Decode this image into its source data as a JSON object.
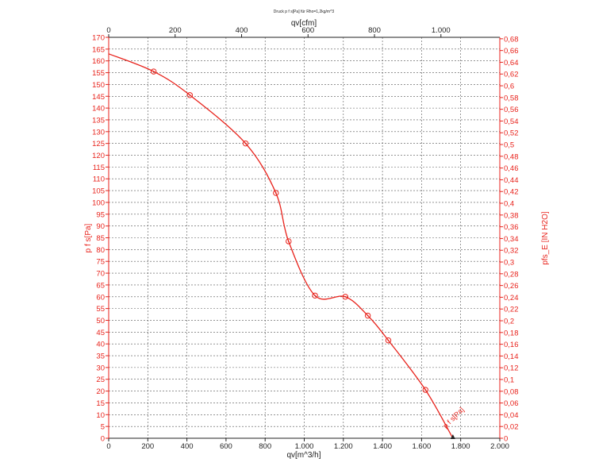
{
  "chart_data": {
    "type": "line",
    "title": "Druck p f s[Pa] für Rho=1,2kg/m^3",
    "xlabel": "qv[m^3/h]",
    "x2label": "qv[cfm]",
    "ylabel": "p f s[Pa]",
    "y2label": "pfs_E [IN H2O]",
    "xlim": [
      0,
      2000
    ],
    "ylim": [
      0,
      170
    ],
    "x2lim": [
      0,
      1177.2
    ],
    "y2lim": [
      0,
      0.6825
    ],
    "grid": true,
    "x_ticks": [
      "0",
      "200",
      "400",
      "600",
      "800",
      "1.000",
      "1.200",
      "1.400",
      "1.600",
      "1.800",
      "2.000"
    ],
    "x_tick_values": [
      0,
      200,
      400,
      600,
      800,
      1000,
      1200,
      1400,
      1600,
      1800,
      2000
    ],
    "x2_ticks": [
      "0",
      "200",
      "400",
      "600",
      "800",
      "1.000"
    ],
    "x2_tick_values": [
      0,
      200,
      400,
      600,
      800,
      1000
    ],
    "y_ticks": [
      "0",
      "5",
      "10",
      "15",
      "20",
      "25",
      "30",
      "35",
      "40",
      "45",
      "50",
      "55",
      "60",
      "65",
      "70",
      "75",
      "80",
      "85",
      "90",
      "95",
      "100",
      "105",
      "110",
      "115",
      "120",
      "125",
      "130",
      "135",
      "140",
      "145",
      "150",
      "155",
      "160",
      "165",
      "170"
    ],
    "y_tick_values": [
      0,
      5,
      10,
      15,
      20,
      25,
      30,
      35,
      40,
      45,
      50,
      55,
      60,
      65,
      70,
      75,
      80,
      85,
      90,
      95,
      100,
      105,
      110,
      115,
      120,
      125,
      130,
      135,
      140,
      145,
      150,
      155,
      160,
      165,
      170
    ],
    "y2_ticks": [
      "0",
      "0,02",
      "0,04",
      "0,06",
      "0,08",
      "0,1",
      "0,12",
      "0,14",
      "0,16",
      "0,18",
      "0,2",
      "0,22",
      "0,24",
      "0,26",
      "0,28",
      "0,3",
      "0,32",
      "0,34",
      "0,36",
      "0,38",
      "0,4",
      "0,42",
      "0,44",
      "0,46",
      "0,48",
      "0,5",
      "0,52",
      "0,54",
      "0,56",
      "0,58",
      "0,6",
      "0,62",
      "0,64",
      "0,66",
      "0,68"
    ],
    "y2_tick_values": [
      0,
      0.02,
      0.04,
      0.06,
      0.08,
      0.1,
      0.12,
      0.14,
      0.16,
      0.18,
      0.2,
      0.22,
      0.24,
      0.26,
      0.28,
      0.3,
      0.32,
      0.34,
      0.36,
      0.38,
      0.4,
      0.42,
      0.44,
      0.46,
      0.48,
      0.5,
      0.52,
      0.54,
      0.56,
      0.58,
      0.6,
      0.62,
      0.64,
      0.66,
      0.68
    ],
    "series": [
      {
        "name": "p f s[Pa]",
        "color": "#e8221b",
        "x": [
          0,
          230,
          415,
          700,
          855,
          920,
          1055,
          1210,
          1325,
          1430,
          1620,
          1760
        ],
        "y": [
          163,
          155.5,
          145.5,
          125,
          104,
          83.5,
          60.5,
          60,
          52,
          41.5,
          20.5,
          0
        ],
        "markers": [
          false,
          true,
          true,
          true,
          true,
          true,
          true,
          true,
          true,
          true,
          true,
          false
        ]
      }
    ],
    "annotation": "p f s[Pa]"
  }
}
